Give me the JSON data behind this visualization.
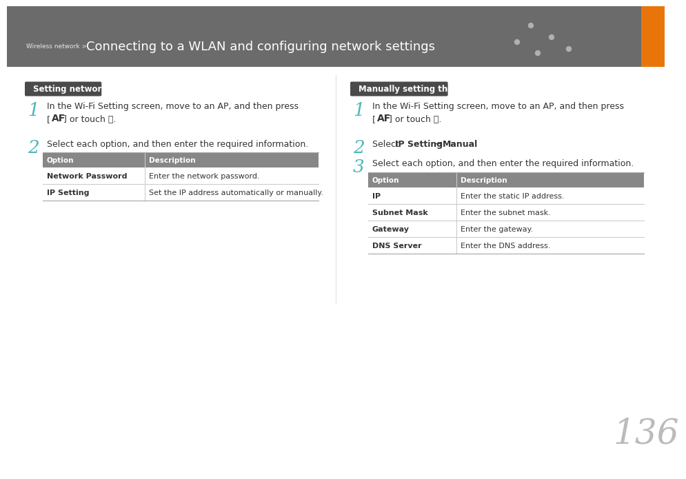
{
  "bg_color": "#ffffff",
  "header_bg": "#6b6b6b",
  "orange_bar_color": "#e8750a",
  "page_number": "136",
  "teal_color": "#4db8b8",
  "section1_title": "Setting network options",
  "section2_title": "Manually setting the IP address",
  "section_title_bg": "#4a4a4a",
  "section_title_text_color": "#ffffff",
  "body_text_color": "#333333",
  "table_header_bg": "#878787",
  "table_border_color": "#cccccc",
  "left_table": {
    "headers": [
      "Option",
      "Description"
    ],
    "rows": [
      [
        "Network Password",
        "Enter the network password."
      ],
      [
        "IP Setting",
        "Set the IP address automatically or manually."
      ]
    ]
  },
  "right_table": {
    "headers": [
      "Option",
      "Description"
    ],
    "rows": [
      [
        "IP",
        "Enter the static IP address."
      ],
      [
        "Subnet Mask",
        "Enter the subnet mask."
      ],
      [
        "Gateway",
        "Enter the gateway."
      ],
      [
        "DNS Server",
        "Enter the DNS address."
      ]
    ]
  }
}
